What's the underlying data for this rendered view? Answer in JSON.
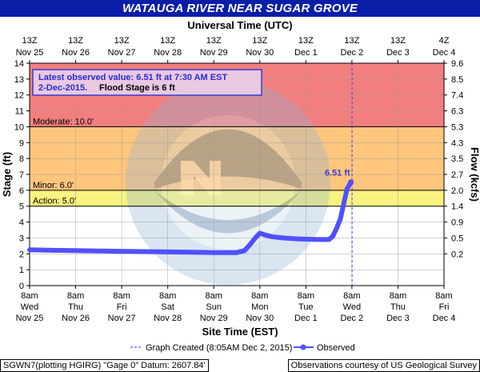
{
  "title": "WATAUGA RIVER NEAR SUGAR GROVE",
  "top_axis_title": "Universal Time (UTC)",
  "top_axis_labels": [
    [
      "13Z",
      "Nov 25"
    ],
    [
      "13Z",
      "Nov 26"
    ],
    [
      "13Z",
      "Nov 27"
    ],
    [
      "13Z",
      "Nov 28"
    ],
    [
      "13Z",
      "Nov 29"
    ],
    [
      "13Z",
      "Nov 30"
    ],
    [
      "13Z",
      "Dec 1"
    ],
    [
      "13Z",
      "Dec 2"
    ],
    [
      "13Z",
      "Dec 3"
    ],
    [
      "4Z",
      "Dec 4"
    ]
  ],
  "bottom_axis_title": "Site Time (EST)",
  "bottom_axis_labels": [
    [
      "8am",
      "Wed",
      "Nov 25"
    ],
    [
      "8am",
      "Thu",
      "Nov 26"
    ],
    [
      "8am",
      "Fri",
      "Nov 27"
    ],
    [
      "8am",
      "Sat",
      "Nov 28"
    ],
    [
      "8am",
      "Sun",
      "Nov 29"
    ],
    [
      "8am",
      "Mon",
      "Nov 30"
    ],
    [
      "8am",
      "Tue",
      "Dec 1"
    ],
    [
      "8am",
      "Wed",
      "Dec 2"
    ],
    [
      "8am",
      "Thu",
      "Dec 3"
    ],
    [
      "8am",
      "Fri",
      "Dec 4"
    ]
  ],
  "left_axis_title": "Stage (ft)",
  "right_axis_title": "Flow (kcfs)",
  "right_axis_ticks": [
    {
      "stage": 14,
      "label": "9.6"
    },
    {
      "stage": 13,
      "label": "8.5"
    },
    {
      "stage": 12,
      "label": "7.4"
    },
    {
      "stage": 11,
      "label": "6.3"
    },
    {
      "stage": 10,
      "label": "5.3"
    },
    {
      "stage": 9,
      "label": "4.3"
    },
    {
      "stage": 8,
      "label": "3.5"
    },
    {
      "stage": 7,
      "label": "2.7"
    },
    {
      "stage": 6,
      "label": "2.0"
    },
    {
      "stage": 5,
      "label": "1.4"
    },
    {
      "stage": 4,
      "label": "0.9"
    },
    {
      "stage": 3,
      "label": "0.5"
    },
    {
      "stage": 2,
      "label": "0.2"
    }
  ],
  "info_box": {
    "line1": "Latest observed value: 6.51 ft at 7:30 AM EST",
    "line2_date": "2-Dec-2015.",
    "line2_flood": "Flood Stage is 6 ft"
  },
  "latest_label": "6.51 ft",
  "thresholds": [
    {
      "name": "Moderate",
      "label": "Moderate: 10.0'",
      "value": 10.0
    },
    {
      "name": "Minor",
      "label": "Minor: 6.0'",
      "value": 6.0
    },
    {
      "name": "Action",
      "label": "Action: 5.0'",
      "value": 5.0
    }
  ],
  "legend": {
    "created": "Graph Created (8:05AM Dec 2, 2015)",
    "observed": "Observed"
  },
  "footer_left": "SGWN7(plotting HGIRG) \"Gage 0\" Datum: 2607.84'",
  "footer_right": "Observations courtesy of US Geological Survey",
  "colors": {
    "major_band": "#f27f7f",
    "moderate_band": "#fec57d",
    "minor_band": "#f9f380",
    "observed": "#5050ff",
    "title_bar": "#0a1ea8",
    "created_line": "#3a3aff"
  },
  "chart_data": {
    "type": "line",
    "title": "WATAUGA RIVER NEAR SUGAR GROVE",
    "xlabel": "Site Time (EST)",
    "ylabel": "Stage (ft)",
    "y2label": "Flow (kcfs)",
    "ylim": [
      0,
      14
    ],
    "xlim": [
      "2015-11-25T08:00",
      "2015-12-04T08:00"
    ],
    "grid": true,
    "legend_position": "bottom",
    "graph_created": "2015-12-02T08:05",
    "series": [
      {
        "name": "Observed",
        "points": [
          [
            "2015-11-25T08:00",
            2.25
          ],
          [
            "2015-11-25T20:00",
            2.22
          ],
          [
            "2015-11-26T08:00",
            2.2
          ],
          [
            "2015-11-26T20:00",
            2.18
          ],
          [
            "2015-11-27T08:00",
            2.16
          ],
          [
            "2015-11-27T20:00",
            2.14
          ],
          [
            "2015-11-28T08:00",
            2.12
          ],
          [
            "2015-11-28T20:00",
            2.1
          ],
          [
            "2015-11-29T08:00",
            2.08
          ],
          [
            "2015-11-29T20:00",
            2.08
          ],
          [
            "2015-11-30T00:00",
            2.2
          ],
          [
            "2015-11-30T03:00",
            2.6
          ],
          [
            "2015-11-30T06:00",
            3.05
          ],
          [
            "2015-11-30T08:00",
            3.3
          ],
          [
            "2015-11-30T10:00",
            3.22
          ],
          [
            "2015-11-30T14:00",
            3.08
          ],
          [
            "2015-11-30T20:00",
            3.0
          ],
          [
            "2015-12-01T02:00",
            2.95
          ],
          [
            "2015-12-01T08:00",
            2.92
          ],
          [
            "2015-12-01T14:00",
            2.9
          ],
          [
            "2015-12-01T20:00",
            2.9
          ],
          [
            "2015-12-01T22:00",
            3.1
          ],
          [
            "2015-12-02T00:00",
            3.6
          ],
          [
            "2015-12-02T02:00",
            4.2
          ],
          [
            "2015-12-02T04:00",
            5.3
          ],
          [
            "2015-12-02T05:30",
            6.1
          ],
          [
            "2015-12-02T07:30",
            6.51
          ]
        ]
      }
    ]
  }
}
